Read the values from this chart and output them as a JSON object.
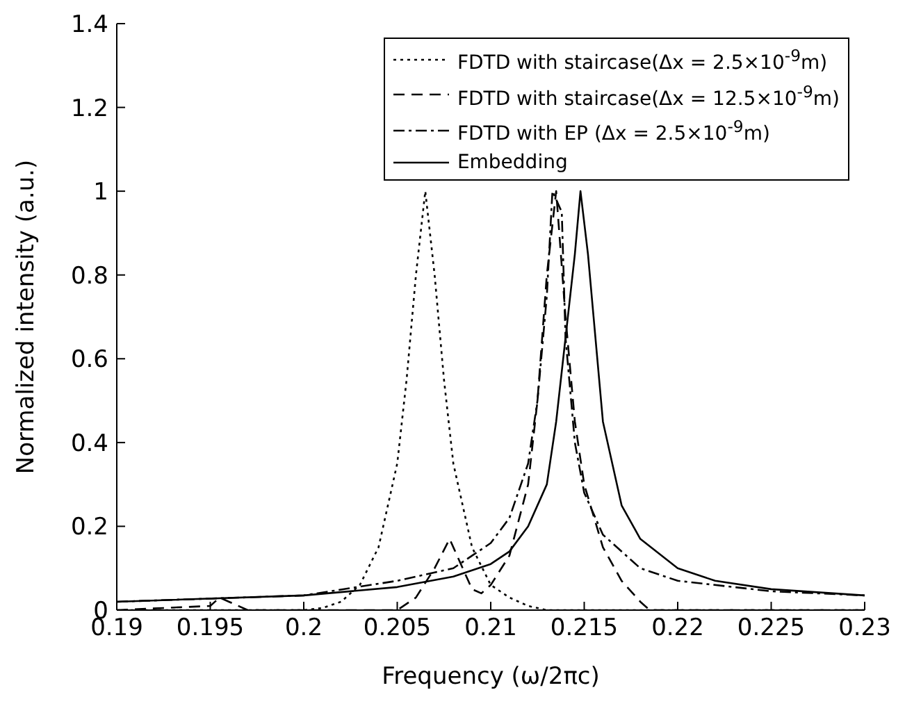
{
  "chart_data": {
    "type": "line",
    "xlabel": "Frequency (ω/2πc)",
    "ylabel": "Normalized intensity (a.u.)",
    "xlim": [
      0.19,
      0.23
    ],
    "xticks": [
      0.19,
      0.195,
      0.2,
      0.205,
      0.21,
      0.215,
      0.22,
      0.225,
      0.23
    ],
    "ylim": [
      0,
      1.4
    ],
    "yticks": [
      0,
      0.2,
      0.4,
      0.6,
      0.8,
      1,
      1.2,
      1.4
    ],
    "grid": false,
    "legend": "top right",
    "marker": "none",
    "series": [
      {
        "name": "FDTD with staircase(Δx = 2.5×10$^{-9}$m)",
        "color": "#000000",
        "line_style": "dotted",
        "x": [
          0.19,
          0.2,
          0.201,
          0.202,
          0.203,
          0.204,
          0.205,
          0.2055,
          0.206,
          0.2065,
          0.207,
          0.2075,
          0.208,
          0.209,
          0.21,
          0.211,
          0.212,
          0.213,
          0.23
        ],
        "values": [
          0,
          0,
          0.005,
          0.02,
          0.06,
          0.15,
          0.35,
          0.55,
          0.8,
          1,
          0.8,
          0.55,
          0.35,
          0.15,
          0.06,
          0.03,
          0.01,
          0,
          0
        ]
      },
      {
        "name": "FDTD with staircase(Δx = 12.5×10$^{-9}$m)",
        "color": "#000000",
        "line_style": "dashed",
        "x": [
          0.19,
          0.195,
          0.1955,
          0.196,
          0.197,
          0.205,
          0.206,
          0.207,
          0.2078,
          0.2085,
          0.209,
          0.2095,
          0.21,
          0.211,
          0.212,
          0.2125,
          0.213,
          0.2135,
          0.214,
          0.2145,
          0.215,
          0.216,
          0.217,
          0.218,
          0.2185,
          0.23
        ],
        "values": [
          0,
          0.01,
          0.03,
          0.02,
          0,
          0,
          0.03,
          0.1,
          0.17,
          0.1,
          0.05,
          0.04,
          0.06,
          0.13,
          0.3,
          0.5,
          0.8,
          1,
          0.7,
          0.45,
          0.3,
          0.15,
          0.07,
          0.02,
          0,
          0
        ]
      },
      {
        "name": "FDTD with EP (Δx = 2.5×10$^{-9}$m)",
        "color": "#000000",
        "line_style": "dashdot",
        "x": [
          0.19,
          0.2,
          0.205,
          0.208,
          0.21,
          0.211,
          0.212,
          0.2125,
          0.213,
          0.2133,
          0.2138,
          0.214,
          0.2145,
          0.215,
          0.216,
          0.218,
          0.22,
          0.225,
          0.23
        ],
        "values": [
          0.02,
          0.035,
          0.07,
          0.1,
          0.16,
          0.22,
          0.35,
          0.5,
          0.75,
          1,
          0.95,
          0.65,
          0.4,
          0.28,
          0.18,
          0.1,
          0.07,
          0.045,
          0.035
        ]
      },
      {
        "name": "Embedding",
        "color": "#000000",
        "line_style": "solid",
        "x": [
          0.19,
          0.2,
          0.205,
          0.208,
          0.21,
          0.211,
          0.212,
          0.213,
          0.2135,
          0.214,
          0.2145,
          0.2148,
          0.2152,
          0.2155,
          0.216,
          0.217,
          0.218,
          0.22,
          0.222,
          0.225,
          0.23
        ],
        "values": [
          0.02,
          0.035,
          0.055,
          0.08,
          0.11,
          0.14,
          0.2,
          0.3,
          0.45,
          0.65,
          0.85,
          1,
          0.85,
          0.7,
          0.45,
          0.25,
          0.17,
          0.1,
          0.07,
          0.05,
          0.035
        ]
      }
    ]
  }
}
